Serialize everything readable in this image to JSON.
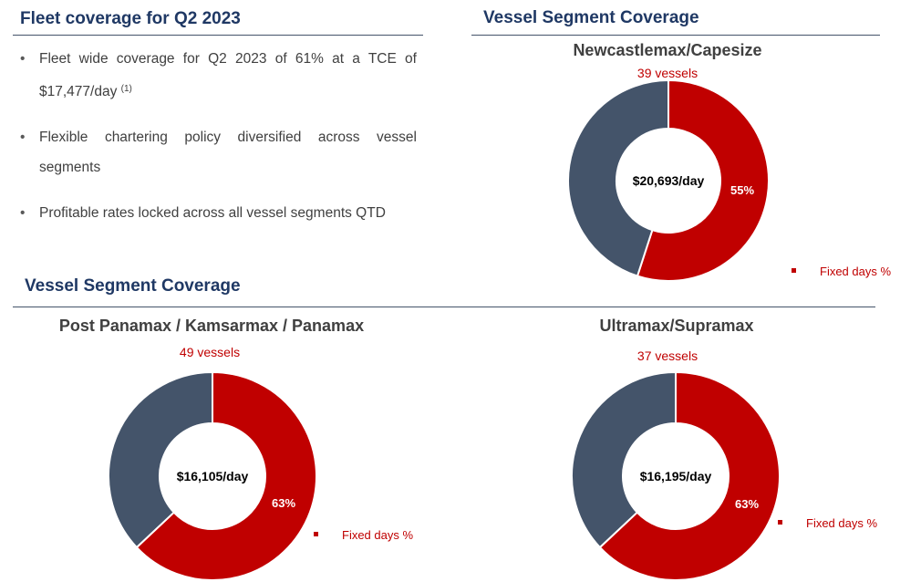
{
  "colors": {
    "fixed": "#c00000",
    "open": "#44546a",
    "title": "#1f3864"
  },
  "fleet": {
    "title": "Fleet coverage for Q2 2023",
    "bullets": [
      {
        "text": "Fleet wide coverage for Q2 2023 of 61% at a TCE of $17,477/day",
        "note": "(1)"
      },
      {
        "text": "Flexible chartering policy diversified across vessel segments"
      },
      {
        "text": "Profitable rates locked across all vessel segments QTD"
      }
    ]
  },
  "top_section_title": "Vessel Segment Coverage",
  "bottom_section_title": "Vessel Segment Coverage",
  "chart_data": [
    {
      "type": "pie",
      "title": "Newcastlemax/Capesize",
      "subtitle": "39 vessels",
      "center_label": "$20,693/day",
      "slices": [
        {
          "name": "Fixed days %",
          "value": 55
        },
        {
          "name": "",
          "value": 45
        }
      ],
      "data_label": "55%",
      "legend": "Fixed days %"
    },
    {
      "type": "pie",
      "title": "Post Panamax / Kamsarmax / Panamax",
      "subtitle": "49 vessels",
      "center_label": "$16,105/day",
      "slices": [
        {
          "name": "Fixed days %",
          "value": 63
        },
        {
          "name": "",
          "value": 37
        }
      ],
      "data_label": "63%",
      "legend": "Fixed days %"
    },
    {
      "type": "pie",
      "title": "Ultramax/Supramax",
      "subtitle": "37 vessels",
      "center_label": "$16,195/day",
      "slices": [
        {
          "name": "Fixed days %",
          "value": 63
        },
        {
          "name": "",
          "value": 37
        }
      ],
      "data_label": "63%",
      "legend": "Fixed days %"
    }
  ]
}
